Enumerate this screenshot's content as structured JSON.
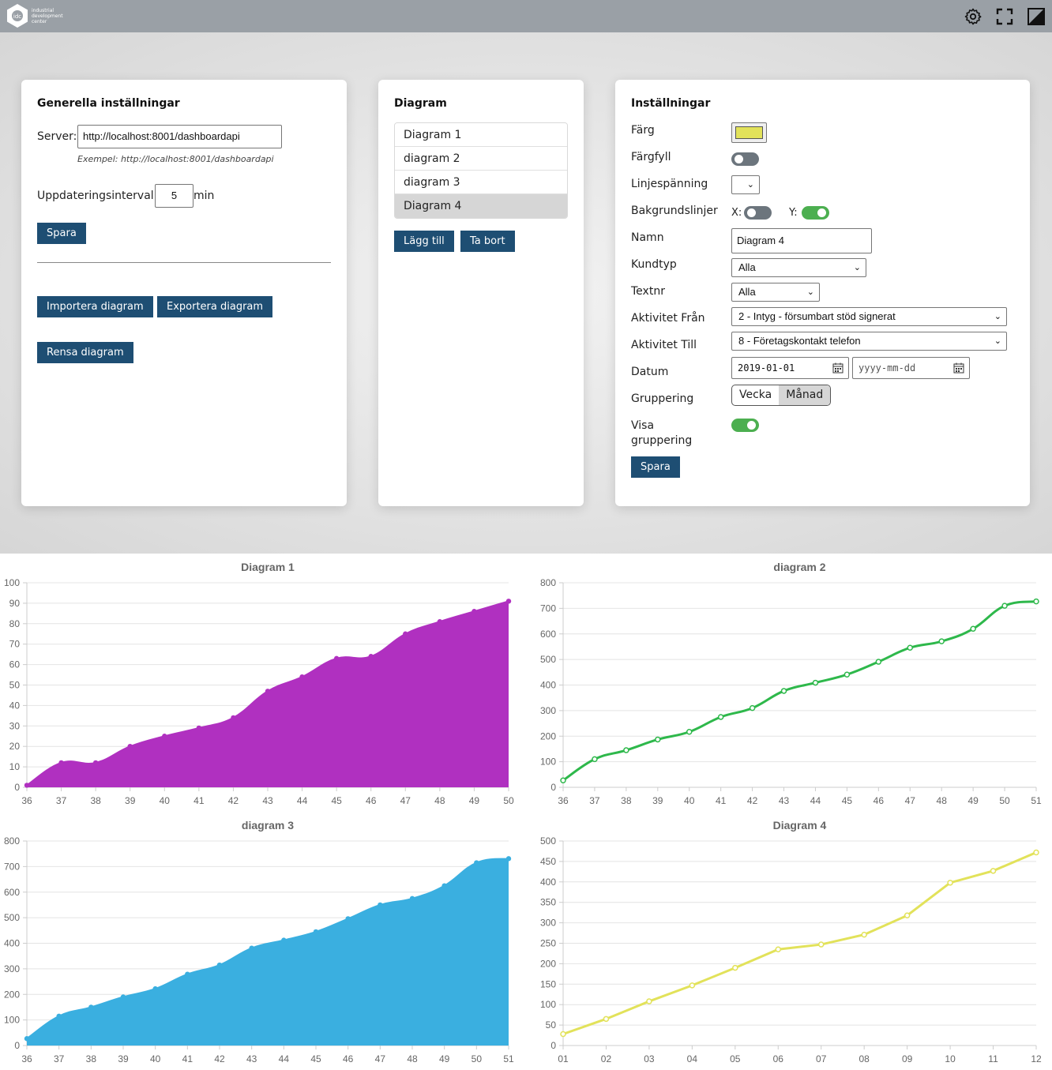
{
  "topbar": {
    "logo_text": [
      "industrial",
      "development",
      "center"
    ],
    "icons": [
      "gear-icon",
      "fullscreen-icon",
      "contrast-icon"
    ]
  },
  "general": {
    "title": "Generella inställningar",
    "server_label": "Server:",
    "server_value": "http://localhost:8001/dashboardapi",
    "server_hint": "Exempel: http://localhost:8001/dashboardapi",
    "interval_label": "Uppdateringsinterval:",
    "interval_value": "5",
    "interval_unit": "min",
    "save_label": "Spara",
    "import_label": "Importera diagram",
    "export_label": "Exportera diagram",
    "clear_label": "Rensa diagram"
  },
  "diagram_list": {
    "title": "Diagram",
    "items": [
      "Diagram 1",
      "diagram 2",
      "diagram 3",
      "Diagram 4"
    ],
    "selected_index": 3,
    "add_label": "Lägg till",
    "remove_label": "Ta bort"
  },
  "settings": {
    "title": "Inställningar",
    "color_label": "Färg",
    "color_value": "#e2e25a",
    "fill_label": "Färgfyll",
    "fill_on": false,
    "tension_label": "Linjespänning",
    "tension_value": "",
    "gridlines_label": "Bakgrundslinjer",
    "grid_x_label": "X:",
    "grid_x_on": false,
    "grid_y_label": "Y:",
    "grid_y_on": true,
    "name_label": "Namn",
    "name_value": "Diagram 4",
    "customer_type_label": "Kundtyp",
    "customer_type_value": "Alla",
    "textnr_label": "Textnr",
    "textnr_value": "Alla",
    "activity_from_label": "Aktivitet Från",
    "activity_from_value": "2 - Intyg - försumbart stöd signerat",
    "activity_to_label": "Aktivitet Till",
    "activity_to_value": "8 - Företagskontakt telefon",
    "date_label": "Datum",
    "date_from_value": "2019-01-01",
    "date_to_placeholder": "yyyy-mm-dd",
    "grouping_label": "Gruppering",
    "grouping_options": [
      "Vecka",
      "Månad"
    ],
    "grouping_selected": "Månad",
    "show_grouping_label_1": "Visa",
    "show_grouping_label_2": "gruppering",
    "show_grouping_on": true,
    "save_label": "Spara"
  },
  "chart_data": [
    {
      "type": "area",
      "title": "Diagram 1",
      "color": "#b030c0",
      "categories": [
        "36",
        "37",
        "38",
        "39",
        "40",
        "41",
        "42",
        "43",
        "44",
        "45",
        "46",
        "47",
        "48",
        "49",
        "50"
      ],
      "values": [
        1,
        12,
        12,
        20,
        25,
        29,
        34,
        47,
        54,
        63,
        64,
        75,
        81,
        86,
        91
      ],
      "ylim": [
        0,
        100
      ],
      "yticks": [
        0,
        10,
        20,
        30,
        40,
        50,
        60,
        70,
        80,
        90,
        100
      ],
      "grid_y": true
    },
    {
      "type": "line",
      "title": "diagram 2",
      "color": "#2eb84b",
      "categories": [
        "36",
        "37",
        "38",
        "39",
        "40",
        "41",
        "42",
        "43",
        "44",
        "45",
        "46",
        "47",
        "48",
        "49",
        "50",
        "51"
      ],
      "values": [
        27,
        110,
        145,
        187,
        217,
        275,
        310,
        377,
        409,
        441,
        491,
        546,
        571,
        620,
        710,
        727
      ],
      "ylim": [
        0,
        800
      ],
      "yticks": [
        0,
        100,
        200,
        300,
        400,
        500,
        600,
        700,
        800
      ],
      "grid_y": true
    },
    {
      "type": "area",
      "title": "diagram 3",
      "color": "#3aafe0",
      "categories": [
        "36",
        "37",
        "38",
        "39",
        "40",
        "41",
        "42",
        "43",
        "44",
        "45",
        "46",
        "47",
        "48",
        "49",
        "50",
        "51"
      ],
      "values": [
        27,
        115,
        150,
        190,
        222,
        279,
        315,
        381,
        412,
        445,
        496,
        550,
        575,
        625,
        715,
        731
      ],
      "ylim": [
        0,
        800
      ],
      "yticks": [
        0,
        100,
        200,
        300,
        400,
        500,
        600,
        700,
        800
      ],
      "grid_y": true
    },
    {
      "type": "line",
      "title": "Diagram 4",
      "color": "#e2e25a",
      "categories": [
        "01",
        "02",
        "03",
        "04",
        "05",
        "06",
        "07",
        "08",
        "09",
        "10",
        "11",
        "12"
      ],
      "values": [
        28,
        65,
        108,
        147,
        190,
        235,
        247,
        271,
        318,
        398,
        427,
        472
      ],
      "ylim": [
        0,
        500
      ],
      "yticks": [
        0,
        50,
        100,
        150,
        200,
        250,
        300,
        350,
        400,
        450,
        500
      ],
      "grid_y": true
    }
  ]
}
